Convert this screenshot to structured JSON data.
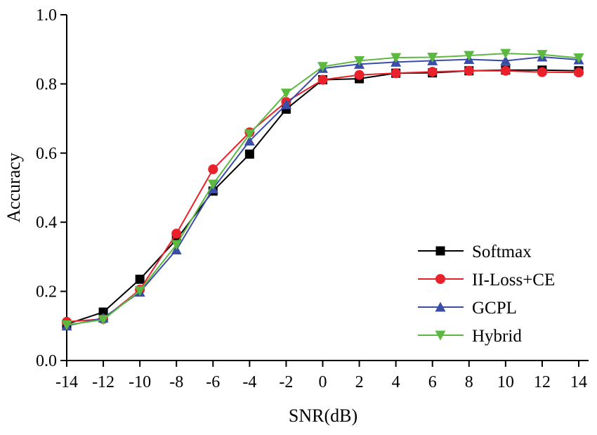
{
  "chart_data": {
    "type": "line",
    "title": "",
    "xlabel": "SNR(dB)",
    "ylabel": "Accuracy",
    "xlim": [
      -14,
      14
    ],
    "ylim": [
      0.0,
      1.0
    ],
    "x": [
      -14,
      -12,
      -10,
      -8,
      -6,
      -4,
      -2,
      0,
      2,
      4,
      6,
      8,
      10,
      12,
      14
    ],
    "xticks": [
      "-14",
      "-12",
      "-10",
      "-8",
      "-6",
      "-4",
      "-2",
      "0",
      "2",
      "4",
      "6",
      "8",
      "10",
      "12",
      "14"
    ],
    "yticks": [
      "0.0",
      "0.2",
      "0.4",
      "0.6",
      "0.8",
      "1.0"
    ],
    "grid": false,
    "legend_position": "bottom-right",
    "series": [
      {
        "name": "Softmax",
        "color": "#000000",
        "marker": "square",
        "values": [
          0.105,
          0.14,
          0.235,
          0.35,
          0.49,
          0.597,
          0.727,
          0.812,
          0.815,
          0.831,
          0.832,
          0.838,
          0.84,
          0.84,
          0.838
        ]
      },
      {
        "name": "II-Loss+CE",
        "color": "#e8212a",
        "marker": "circle",
        "values": [
          0.112,
          0.12,
          0.205,
          0.367,
          0.553,
          0.66,
          0.748,
          0.812,
          0.826,
          0.831,
          0.835,
          0.838,
          0.838,
          0.834,
          0.833
        ]
      },
      {
        "name": "GCPL",
        "color": "#3a4ea8",
        "marker": "triangle-up",
        "values": [
          0.1,
          0.123,
          0.198,
          0.32,
          0.497,
          0.635,
          0.74,
          0.845,
          0.857,
          0.863,
          0.867,
          0.871,
          0.867,
          0.878,
          0.87
        ]
      },
      {
        "name": "Hybrid",
        "color": "#5cb940",
        "marker": "triangle-down",
        "values": [
          0.103,
          0.118,
          0.202,
          0.335,
          0.51,
          0.655,
          0.773,
          0.85,
          0.867,
          0.876,
          0.877,
          0.882,
          0.888,
          0.885,
          0.875
        ]
      }
    ]
  }
}
